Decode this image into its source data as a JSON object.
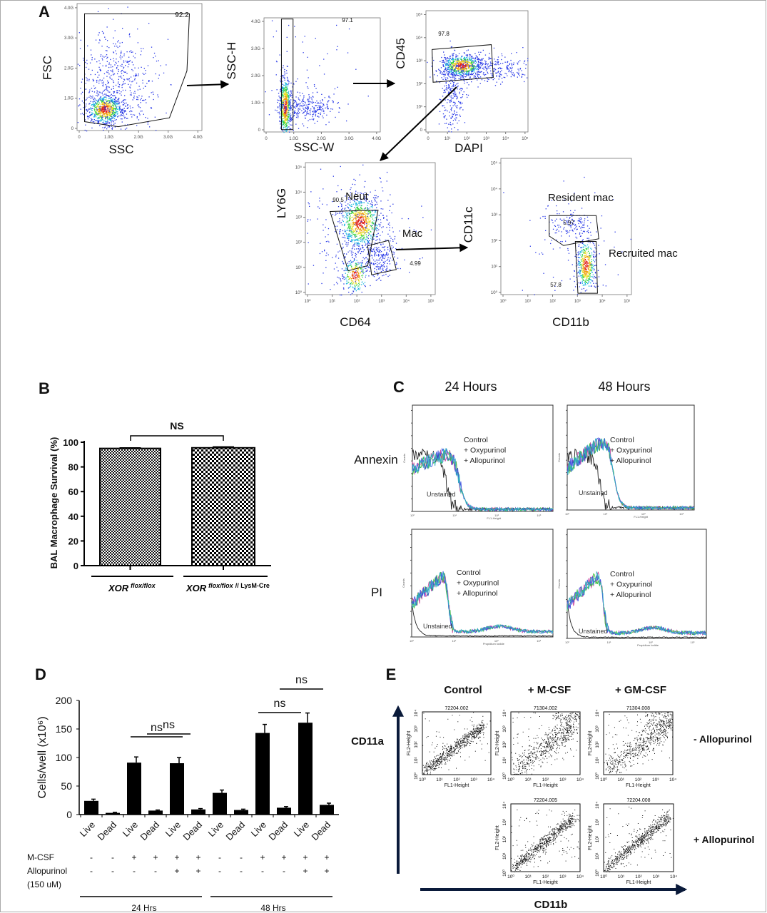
{
  "panel_labels": {
    "a": "A",
    "b": "B",
    "c": "C",
    "d": "D",
    "e": "E"
  },
  "chart_data": [
    {
      "id": "A1",
      "type": "scatter",
      "xlabel": "SSC",
      "ylabel": "FSC",
      "xticks": [
        "0",
        "1.0G",
        "2.0G",
        "3.0G",
        "4.0G"
      ],
      "yticks": [
        "0",
        "1.0G",
        "2.0G",
        "3.0G",
        "4.0G"
      ],
      "annotations": [
        "92.2"
      ]
    },
    {
      "id": "A2",
      "type": "scatter",
      "xlabel": "SSC-W",
      "ylabel": "SSC-H",
      "xticks": [
        "0",
        "1.0G",
        "2.0G",
        "3.0G",
        "4.0G"
      ],
      "yticks": [
        "0",
        "1.0G",
        "2.0G",
        "3.0G",
        "4.0G"
      ],
      "annotations": [
        "97.1"
      ]
    },
    {
      "id": "A3",
      "type": "scatter",
      "xlabel": "DAPI",
      "ylabel": "CD45",
      "xticks": [
        "0",
        "10¹",
        "10²",
        "10³",
        "10⁴",
        "10⁵"
      ],
      "yticks": [
        "0",
        "10¹",
        "10²",
        "10³",
        "10⁴",
        "10⁵"
      ],
      "annotations": [
        "97.8"
      ]
    },
    {
      "id": "A4",
      "type": "scatter",
      "xlabel": "CD64",
      "ylabel": "LY6G",
      "xticks": [
        "10⁰",
        "10¹",
        "10²",
        "10³",
        "10⁴",
        "10⁵"
      ],
      "yticks": [
        "10⁰",
        "10¹",
        "10²",
        "10³",
        "10⁴",
        "10⁵"
      ],
      "annotations": [
        "90.5",
        "Neut",
        "Mac",
        "4.99"
      ]
    },
    {
      "id": "A5",
      "type": "scatter",
      "xlabel": "CD11b",
      "ylabel": "CD11c",
      "xticks": [
        "10⁰",
        "10¹",
        "10²",
        "10³",
        "10⁴",
        "10⁵"
      ],
      "yticks": [
        "10⁰",
        "10¹",
        "10²",
        "10³",
        "10⁴",
        "10⁵"
      ],
      "annotations": [
        "Resident mac",
        "5.97",
        "Recruited mac",
        "57.8"
      ]
    },
    {
      "id": "B",
      "type": "bar",
      "categories": [
        {
          "base": "XOR",
          "sup": "flox/flox",
          "suffix": ""
        },
        {
          "base": "XOR",
          "sup": "flox/flox",
          "suffix": "// LysM-Cre"
        }
      ],
      "values": [
        95,
        95.5
      ],
      "errors": [
        0.5,
        0.8
      ],
      "ylabel": "BAL Macrophage Survival (%)",
      "ylim": [
        0,
        100
      ],
      "yticks": [
        "0",
        "20",
        "40",
        "60",
        "80",
        "100"
      ],
      "significance": "NS",
      "bar_patterns": [
        "fine-checker",
        "coarse-checker"
      ]
    },
    {
      "id": "C",
      "type": "line",
      "columns": [
        "24 Hours",
        "48 Hours"
      ],
      "rows": [
        "Annexin",
        "PI"
      ],
      "legend": [
        "Control",
        "+ Oxypurinol",
        "+ Allopurinol"
      ],
      "unstained": "Unstained",
      "ylabel": "Counts",
      "xlabels": [
        "FL1-Height",
        "Propidium Iodide"
      ],
      "xticks": [
        "10⁰",
        "10¹",
        "10²",
        "10³"
      ],
      "series_colors": [
        "#222222",
        "#d04aa0",
        "#40c040",
        "#4050e0",
        "#30b0c0"
      ]
    },
    {
      "id": "D",
      "type": "bar",
      "categories": [
        "Live",
        "Dead",
        "Live",
        "Dead",
        "Live",
        "Dead",
        "Live",
        "Dead",
        "Live",
        "Dead",
        "Live",
        "Dead"
      ],
      "values": [
        24,
        3,
        91,
        7,
        90,
        9,
        38,
        8,
        143,
        12,
        161,
        17
      ],
      "errors": [
        3,
        1,
        10,
        1,
        10,
        1.5,
        5,
        1.5,
        15,
        2,
        17,
        3
      ],
      "ylabel": "Cells/well (x10⁶)",
      "ylim": [
        0,
        200
      ],
      "yticks": [
        "0",
        "50",
        "100",
        "150",
        "200"
      ],
      "treatments": [
        {
          "label": "M-CSF",
          "values": [
            "-",
            "-",
            "+",
            "+",
            "+",
            "+",
            "-",
            "-",
            "+",
            "+",
            "+",
            "+"
          ]
        },
        {
          "label": "Allopurinol",
          "values": [
            "-",
            "-",
            "-",
            "-",
            "+",
            "+",
            "-",
            "-",
            "-",
            "-",
            "+",
            "+"
          ]
        }
      ],
      "treatment_note": "(150 uM)",
      "groups": [
        "24 Hrs",
        "48 Hrs"
      ],
      "comparisons": [
        "ns",
        "ns",
        "ns",
        "ns"
      ]
    },
    {
      "id": "E",
      "type": "scatter",
      "columns": [
        "Control",
        "+ M-CSF",
        "+ GM-CSF"
      ],
      "rows": [
        "- Allopurinol",
        "+ Allopurinol"
      ],
      "sample_ids": [
        "72204.002",
        "71304.002",
        "71304.008",
        "72204.005",
        "72204.008"
      ],
      "plot_xlabel": "FL1-Height",
      "plot_ylabel": "FL2-Height",
      "ticks": [
        "10⁰",
        "10¹",
        "10²",
        "10³",
        "10⁴"
      ],
      "xlabel": "CD11b",
      "ylabel": "CD11a"
    }
  ]
}
